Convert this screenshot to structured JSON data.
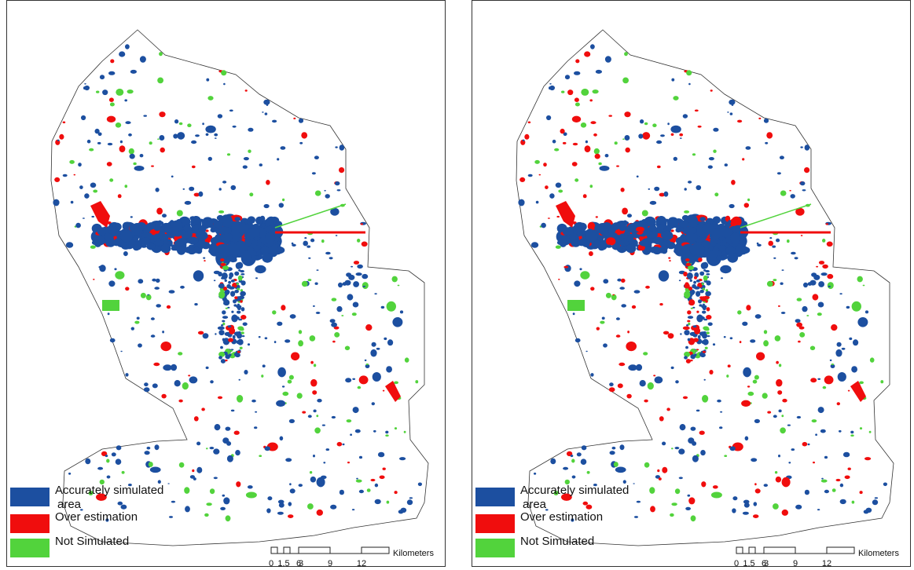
{
  "panels": [
    {
      "legend": [
        {
          "label": [
            "Accurately simulated",
            "area"
          ],
          "color": "#1c4fa0"
        },
        {
          "label": [
            "Over estimation"
          ],
          "color": "#f00d0d"
        },
        {
          "label": [
            "Not Simulated"
          ],
          "color": "#52d33c"
        }
      ],
      "scale": {
        "ticks": [
          "0",
          "1.5",
          "3",
          "6",
          "9",
          "12"
        ],
        "unit": "Kilometers"
      }
    },
    {
      "legend": [
        {
          "label": [
            "Accurately simulated",
            "area"
          ],
          "color": "#1c4fa0"
        },
        {
          "label": [
            "Over estimation"
          ],
          "color": "#f00d0d"
        },
        {
          "label": [
            "Not Simulated"
          ],
          "color": "#52d33c"
        }
      ],
      "scale": {
        "ticks": [
          "0",
          "1.5",
          "3",
          "6",
          "9",
          "12"
        ],
        "unit": "Kilometers"
      }
    }
  ]
}
